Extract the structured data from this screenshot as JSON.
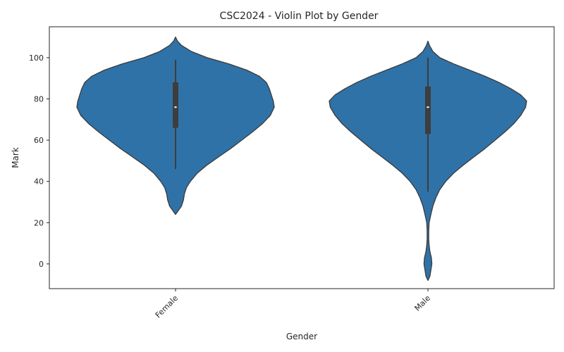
{
  "chart_data": {
    "type": "violin",
    "title": "CSC2024 - Violin Plot by Gender",
    "xlabel": "Gender",
    "ylabel": "Mark",
    "ylim": [
      -12,
      115
    ],
    "yticks": [
      0,
      20,
      40,
      60,
      80,
      100
    ],
    "xtick_rotation": 45,
    "grid": false,
    "colors": {
      "fill": "#2f72a8",
      "edge": "#3a3a3a",
      "box": "#3d3d3d",
      "median": "#ffffff"
    },
    "categories": [
      "Female",
      "Male"
    ],
    "violins": [
      {
        "category": "Female",
        "density_profile": [
          [
            24,
            0.0
          ],
          [
            26,
            0.03
          ],
          [
            28,
            0.06
          ],
          [
            31,
            0.08
          ],
          [
            34,
            0.09
          ],
          [
            37,
            0.11
          ],
          [
            40,
            0.15
          ],
          [
            44,
            0.22
          ],
          [
            48,
            0.32
          ],
          [
            52,
            0.44
          ],
          [
            56,
            0.56
          ],
          [
            60,
            0.67
          ],
          [
            64,
            0.78
          ],
          [
            68,
            0.88
          ],
          [
            72,
            0.96
          ],
          [
            76,
            1.0
          ],
          [
            79,
            0.99
          ],
          [
            82,
            0.97
          ],
          [
            85,
            0.95
          ],
          [
            88,
            0.92
          ],
          [
            91,
            0.85
          ],
          [
            94,
            0.72
          ],
          [
            97,
            0.54
          ],
          [
            100,
            0.32
          ],
          [
            103,
            0.16
          ],
          [
            106,
            0.06
          ],
          [
            108,
            0.02
          ],
          [
            110,
            0.0
          ]
        ],
        "box": {
          "q1": 66,
          "median": 76,
          "q3": 88,
          "whisker_low": 46,
          "whisker_high": 99
        }
      },
      {
        "category": "Male",
        "density_profile": [
          [
            -8,
            0.0
          ],
          [
            -6,
            0.02
          ],
          [
            -3,
            0.03
          ],
          [
            0,
            0.04
          ],
          [
            3,
            0.035
          ],
          [
            6,
            0.02
          ],
          [
            9,
            0.012
          ],
          [
            12,
            0.008
          ],
          [
            16,
            0.008
          ],
          [
            20,
            0.012
          ],
          [
            24,
            0.03
          ],
          [
            28,
            0.05
          ],
          [
            32,
            0.08
          ],
          [
            36,
            0.12
          ],
          [
            40,
            0.18
          ],
          [
            44,
            0.26
          ],
          [
            48,
            0.36
          ],
          [
            52,
            0.47
          ],
          [
            56,
            0.58
          ],
          [
            60,
            0.68
          ],
          [
            64,
            0.78
          ],
          [
            68,
            0.87
          ],
          [
            72,
            0.94
          ],
          [
            76,
            0.99
          ],
          [
            79,
            1.0
          ],
          [
            82,
            0.94
          ],
          [
            85,
            0.84
          ],
          [
            88,
            0.72
          ],
          [
            91,
            0.58
          ],
          [
            94,
            0.42
          ],
          [
            97,
            0.26
          ],
          [
            100,
            0.12
          ],
          [
            103,
            0.05
          ],
          [
            106,
            0.015
          ],
          [
            108,
            0.0
          ]
        ],
        "box": {
          "q1": 63,
          "median": 76,
          "q3": 86,
          "whisker_low": 35,
          "whisker_high": 100
        }
      }
    ]
  }
}
